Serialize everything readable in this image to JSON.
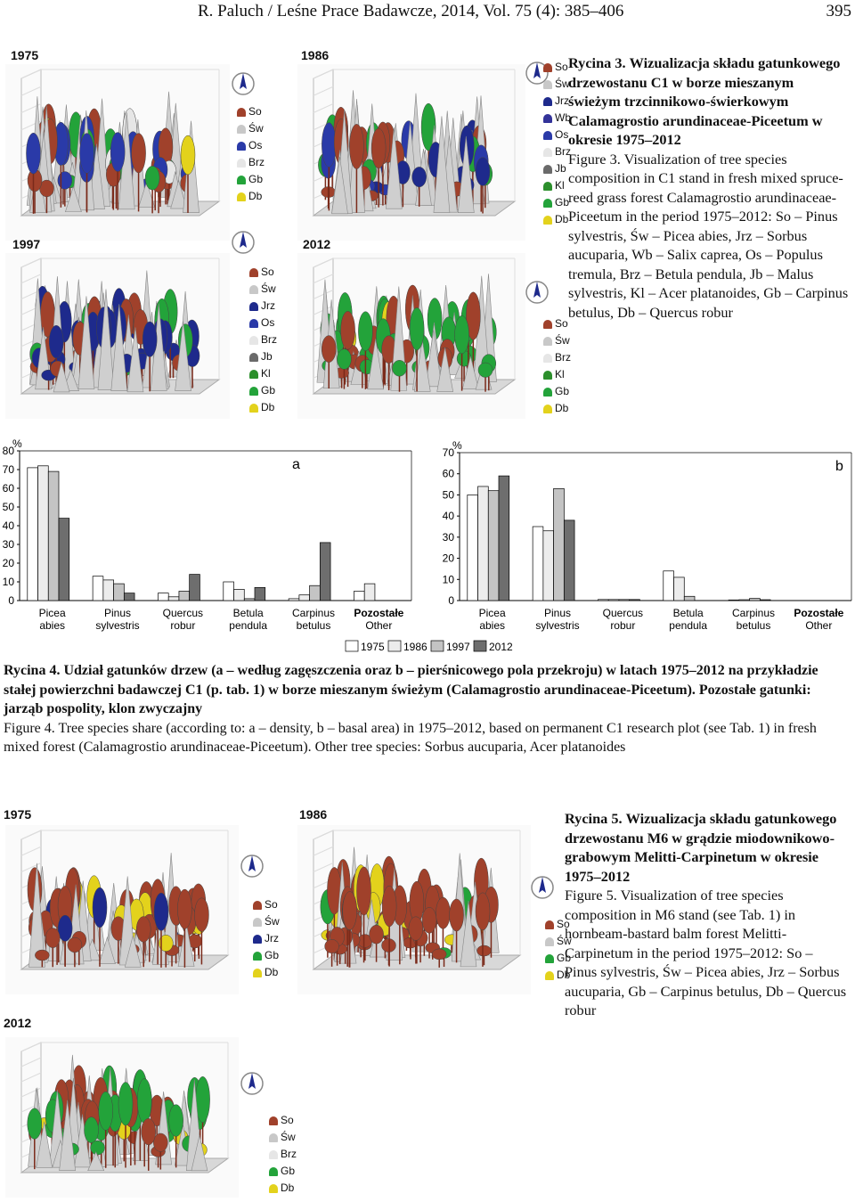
{
  "header": {
    "running_title": "R. Paluch / Leśne Prace Badawcze, 2014, Vol. 75 (4): 385–406",
    "page_number": "395"
  },
  "fig3": {
    "panels": [
      {
        "year": "1975",
        "legend": [
          "So",
          "Św",
          "Os",
          "Brz",
          "Gb",
          "Db"
        ]
      },
      {
        "year": "1986",
        "legend": [
          "So",
          "Św",
          "Jrz",
          "Wb",
          "Os",
          "Brz",
          "Jb",
          "Kl",
          "Gb",
          "Db"
        ]
      },
      {
        "year": "1997",
        "legend": [
          "So",
          "Św",
          "Jrz",
          "Os",
          "Brz",
          "Jb",
          "Kl",
          "Gb",
          "Db"
        ]
      },
      {
        "year": "2012",
        "legend": [
          "So",
          "Św",
          "Brz",
          "Kl",
          "Gb",
          "Db"
        ]
      }
    ],
    "caption_pl_label": "Rycina 3.",
    "caption_pl": "Wizualizacja składu gatunkowego drzewostanu C1 w borze mieszanym świeżym trzcinnikowo-świerkowym Calamagrostio arundinaceae-Piceetum w okresie 1975–2012",
    "caption_en_label": "Figure 3.",
    "caption_en": "Visualization of tree species composition in C1 stand in fresh mixed spruce-reed grass forest Calamagrostio arundinaceae-Piceetum in the period 1975–2012: So – Pinus sylvestris, Św – Picea abies, Jrz – Sorbus aucuparia, Wb – Salix caprea, Os – Populus tremula, Brz – Betula pendula, Jb – Malus sylvestris, Kl – Acer platanoides, Gb – Carpinus betulus, Db – Quercus robur"
  },
  "fig4": {
    "caption_pl_label": "Rycina 4.",
    "caption_pl": "Udział gatunków drzew (a – według zagęszczenia oraz b – pierśnicowego pola przekroju) w latach 1975–2012 na przykładzie stałej powierzchni badawczej C1 (p. tab. 1) w borze mieszanym świeżym (Calamagrostio arundinaceae-Piceetum). Pozostałe gatunki: jarząb pospolity, klon zwyczajny",
    "caption_en_label": "Figure 4.",
    "caption_en": "Tree species share (according to: a – density, b – basal area) in 1975–2012, based on permanent C1 research plot (see Tab. 1) in fresh mixed forest (Calamagrostio arundinaceae-Piceetum). Other tree species: Sorbus aucuparia, Acer platanoides"
  },
  "fig5": {
    "panels": [
      {
        "year": "1975",
        "legend": [
          "So",
          "Św",
          "Jrz",
          "Gb",
          "Db"
        ]
      },
      {
        "year": "1986",
        "legend": [
          "So",
          "Św",
          "Gb",
          "Db"
        ]
      },
      {
        "year": "2012",
        "legend": [
          "So",
          "Św",
          "Brz",
          "Gb",
          "Db"
        ]
      }
    ],
    "caption_pl_label": "Rycina 5.",
    "caption_pl": "Wizualizacja składu gatunkowego drzewostanu M6 w grądzie miodownikowo-grabowym Melitti-Carpinetum w okresie 1975–2012",
    "caption_en_label": "Figure 5.",
    "caption_en": "Visualization of tree species composition in M6 stand (see Tab. 1) in hornbeam-bastard balm forest Melitti-Carpinetum in the period 1975–2012: So – Pinus sylvestris, Św – Picea abies, Jrz – Sorbus aucuparia, Gb – Carpinus betulus, Db – Quercus robur"
  },
  "colors": {
    "So": "#a0412b",
    "Św": "#c8c8c8",
    "Jrz": "#1e2a8c",
    "Wb": "#333399",
    "Os": "#2a3aa8",
    "Brz": "#e6e6e6",
    "Jb": "#6a6a6a",
    "Kl": "#2c8f2c",
    "Gb": "#23a33a",
    "Db": "#e3d21c"
  },
  "chart_data": [
    {
      "type": "bar",
      "panel_label": "a",
      "ylabel": "%",
      "ylim": [
        0,
        80
      ],
      "yticks": [
        0,
        10,
        20,
        30,
        40,
        50,
        60,
        70,
        80
      ],
      "categories": [
        [
          "Picea",
          "abies"
        ],
        [
          "Pinus",
          "sylvestris"
        ],
        [
          "Quercus",
          "robur"
        ],
        [
          "Betula",
          "pendula"
        ],
        [
          "Carpinus",
          "betulus"
        ],
        [
          "Pozostałe",
          "Other"
        ]
      ],
      "series": [
        {
          "name": "1975",
          "color": "#ffffff",
          "values": [
            71,
            13,
            4,
            10,
            1,
            5
          ]
        },
        {
          "name": "1986",
          "color": "#ececec",
          "values": [
            72,
            11,
            2,
            6,
            3,
            9
          ]
        },
        {
          "name": "1997",
          "color": "#c4c4c4",
          "values": [
            69,
            9,
            5,
            1,
            8,
            0
          ]
        },
        {
          "name": "2012",
          "color": "#6e6e6e",
          "values": [
            44,
            4,
            14,
            7,
            31,
            0
          ]
        }
      ],
      "legend_position": "bottom"
    },
    {
      "type": "bar",
      "panel_label": "b",
      "ylabel": "%",
      "ylim": [
        0,
        70
      ],
      "yticks": [
        0,
        10,
        20,
        30,
        40,
        50,
        60,
        70
      ],
      "categories": [
        [
          "Picea",
          "abies"
        ],
        [
          "Pinus",
          "sylvestris"
        ],
        [
          "Quercus",
          "robur"
        ],
        [
          "Betula",
          "pendula"
        ],
        [
          "Carpinus",
          "betulus"
        ],
        [
          "Pozostałe",
          "Other"
        ]
      ],
      "series": [
        {
          "name": "1975",
          "color": "#ffffff",
          "values": [
            50,
            35,
            0.5,
            14,
            0.3,
            0
          ]
        },
        {
          "name": "1986",
          "color": "#ececec",
          "values": [
            54,
            33,
            0.5,
            11,
            0.4,
            0
          ]
        },
        {
          "name": "1997",
          "color": "#c4c4c4",
          "values": [
            52,
            53,
            0.5,
            2,
            1,
            0
          ]
        },
        {
          "name": "2012",
          "color": "#6e6e6e",
          "values": [
            59,
            38,
            0.5,
            0,
            0.4,
            0
          ]
        }
      ],
      "legend_position": "bottom"
    }
  ]
}
